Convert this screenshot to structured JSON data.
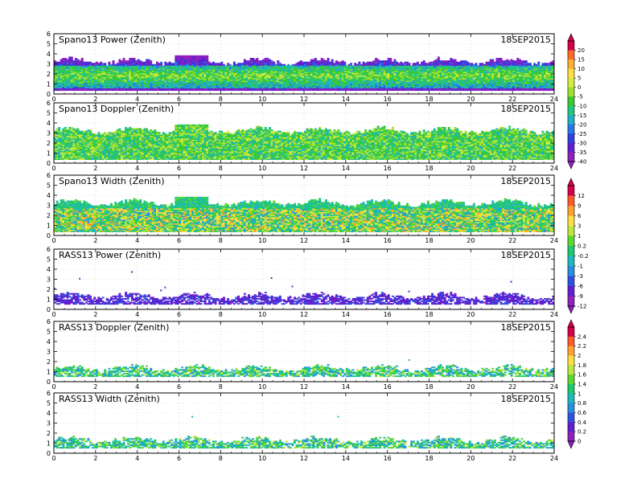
{
  "chart_data": [
    {
      "type": "heatmap",
      "title": "Spano13 Power (Zenith)",
      "date": "18SEP2015",
      "x_ticks": [
        "0",
        "2",
        "4",
        "6",
        "8",
        "10",
        "12",
        "14",
        "16",
        "18",
        "20",
        "22",
        "24"
      ],
      "y_ticks": [
        "0",
        "1",
        "2",
        "3",
        "4",
        "5",
        "6"
      ],
      "xlim": [
        0,
        24
      ],
      "ylim": [
        0,
        6
      ],
      "colorbar": "A",
      "field": "power",
      "top_height": 3.2,
      "base_height": 0.35,
      "noise_thresh": 0.0
    },
    {
      "type": "heatmap",
      "title": "Spano13 Doppler (Zenith)",
      "date": "18SEP2015",
      "x_ticks": [
        "0",
        "2",
        "4",
        "6",
        "8",
        "10",
        "12",
        "14",
        "16",
        "18",
        "20",
        "22",
        "24"
      ],
      "y_ticks": [
        "0",
        "1",
        "2",
        "3",
        "4",
        "5",
        "6"
      ],
      "xlim": [
        0,
        24
      ],
      "ylim": [
        0,
        6
      ],
      "colorbar": "A",
      "field": "doppler",
      "top_height": 3.2,
      "base_height": 0.35,
      "noise_thresh": 0.0
    },
    {
      "type": "heatmap",
      "title": "Spano13 Width (Zenith)",
      "date": "18SEP2015",
      "x_ticks": [
        "0",
        "2",
        "4",
        "6",
        "8",
        "10",
        "12",
        "14",
        "16",
        "18",
        "20",
        "22",
        "24"
      ],
      "y_ticks": [
        "0",
        "1",
        "2",
        "3",
        "4",
        "5",
        "6"
      ],
      "xlim": [
        0,
        24
      ],
      "ylim": [
        0,
        6
      ],
      "colorbar": "B",
      "field": "width",
      "top_height": 3.2,
      "base_height": 0.35,
      "noise_thresh": 0.0
    },
    {
      "type": "heatmap",
      "title": "RASS13 Power (Zenith)",
      "date": "18SEP2015",
      "x_ticks": [
        "0",
        "2",
        "4",
        "6",
        "8",
        "10",
        "12",
        "14",
        "16",
        "18",
        "20",
        "22",
        "24"
      ],
      "y_ticks": [
        "0",
        "1",
        "2",
        "3",
        "4",
        "5",
        "6"
      ],
      "xlim": [
        0,
        24
      ],
      "ylim": [
        0,
        6
      ],
      "colorbar": "B",
      "field": "rass_power",
      "top_height": 1.3,
      "base_height": 0.5,
      "noise_thresh": 0.97
    },
    {
      "type": "heatmap",
      "title": "RASS13 Doppler (Zenith)",
      "date": "18SEP2015",
      "x_ticks": [
        "0",
        "2",
        "4",
        "6",
        "8",
        "10",
        "12",
        "14",
        "16",
        "18",
        "20",
        "22",
        "24"
      ],
      "y_ticks": [
        "0",
        "1",
        "2",
        "3",
        "4",
        "5",
        "6"
      ],
      "xlim": [
        0,
        24
      ],
      "ylim": [
        0,
        6
      ],
      "colorbar": "C",
      "field": "rass_doppler",
      "top_height": 1.3,
      "base_height": 0.5,
      "noise_thresh": 0.985
    },
    {
      "type": "heatmap",
      "title": "RASS13 Width (Zenith)",
      "date": "18SEP2015",
      "x_ticks": [
        "0",
        "2",
        "4",
        "6",
        "8",
        "10",
        "12",
        "14",
        "16",
        "18",
        "20",
        "22",
        "24"
      ],
      "y_ticks": [
        "0",
        "1",
        "2",
        "3",
        "4",
        "5",
        "6"
      ],
      "xlim": [
        0,
        24
      ],
      "ylim": [
        0,
        6
      ],
      "colorbar": "C",
      "field": "rass_width",
      "top_height": 1.3,
      "base_height": 0.5,
      "noise_thresh": 0.985
    }
  ],
  "colorbars": {
    "A": {
      "labels": [
        "20",
        "15",
        "10",
        "5",
        "0",
        "-5",
        "-10",
        "-15",
        "-20",
        "-25",
        "-30",
        "-35",
        "-40"
      ],
      "colors": [
        "#d4004a",
        "#ff6a2a",
        "#ffb030",
        "#ffe040",
        "#d8ec40",
        "#9ce030",
        "#3cc830",
        "#20c880",
        "#20b0c8",
        "#2878e8",
        "#3040e0",
        "#6020d0",
        "#9020c0"
      ]
    },
    "B": {
      "labels": [
        "12",
        "9",
        "6",
        "3",
        "1",
        "0.2",
        "-0.2",
        "-1",
        "-3",
        "-6",
        "-9",
        "-12"
      ],
      "colors": [
        "#d4004a",
        "#ff5a2a",
        "#ffa030",
        "#ffe040",
        "#bce840",
        "#5cd830",
        "#20c870",
        "#20b8c0",
        "#2890e0",
        "#3050e0",
        "#6020d0",
        "#9020c0"
      ]
    },
    "C": {
      "labels": [
        "2.4",
        "2.2",
        "2",
        "1.8",
        "1.6",
        "1.4",
        "1",
        "0.8",
        "0.6",
        "0.4",
        "0.2",
        "0"
      ],
      "colors": [
        "#d4004a",
        "#ff5a2a",
        "#ffa030",
        "#ffe040",
        "#bce840",
        "#5cd830",
        "#20c870",
        "#20b8c0",
        "#2890e0",
        "#3050e0",
        "#6020d0",
        "#9020c0"
      ]
    }
  }
}
